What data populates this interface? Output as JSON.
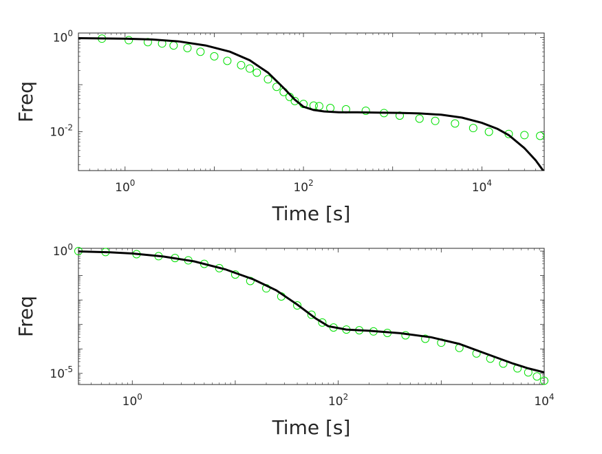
{
  "chart_data": [
    {
      "type": "scatter",
      "xlabel": "Time [s]",
      "ylabel": "Freq",
      "xscale": "log",
      "yscale": "log",
      "xlim": [
        0.3,
        50000
      ],
      "ylim": [
        0.0015,
        1.25
      ],
      "xticks": [
        {
          "v": 1,
          "base": "10",
          "exp": "0"
        },
        {
          "v": 100,
          "base": "10",
          "exp": "2"
        },
        {
          "v": 10000,
          "base": "10",
          "exp": "4"
        }
      ],
      "yticks": [
        {
          "v": 0.01,
          "base": "10",
          "exp": "-2"
        },
        {
          "v": 1,
          "base": "10",
          "exp": "0"
        }
      ],
      "marker_color": "#00e000",
      "line_color": "#000000",
      "series": [
        {
          "kind": "markers",
          "x": [
            0.55,
            1.1,
            1.8,
            2.6,
            3.5,
            5,
            7,
            10,
            14,
            20,
            25,
            30,
            40,
            50,
            60,
            70,
            80,
            100,
            130,
            150,
            200,
            300,
            500,
            800,
            1200,
            2000,
            3000,
            5000,
            8000,
            12000,
            20000,
            30000,
            45000
          ],
          "y": [
            0.95,
            0.88,
            0.8,
            0.75,
            0.68,
            0.6,
            0.5,
            0.4,
            0.32,
            0.26,
            0.22,
            0.18,
            0.13,
            0.09,
            0.07,
            0.055,
            0.045,
            0.039,
            0.036,
            0.035,
            0.032,
            0.03,
            0.028,
            0.025,
            0.022,
            0.019,
            0.017,
            0.015,
            0.012,
            0.01,
            0.009,
            0.0085,
            0.0082
          ]
        },
        {
          "kind": "fit",
          "x": [
            0.3,
            1,
            2,
            4,
            8,
            15,
            25,
            40,
            60,
            80,
            100,
            130,
            170,
            250,
            400,
            700,
            1200,
            2000,
            3500,
            6000,
            10000,
            15000,
            20000,
            30000,
            40000,
            50000
          ],
          "y": [
            0.97,
            0.95,
            0.91,
            0.83,
            0.68,
            0.5,
            0.33,
            0.18,
            0.085,
            0.048,
            0.034,
            0.029,
            0.027,
            0.026,
            0.026,
            0.0255,
            0.0252,
            0.0245,
            0.023,
            0.02,
            0.0155,
            0.0115,
            0.0085,
            0.0045,
            0.0025,
            0.0014
          ]
        }
      ]
    },
    {
      "type": "scatter",
      "xlabel": "Time [s]",
      "ylabel": "Freq",
      "xscale": "log",
      "yscale": "log",
      "xlim": [
        0.3,
        10000
      ],
      "ylim": [
        3.5e-06,
        1.3
      ],
      "xticks": [
        {
          "v": 1,
          "base": "10",
          "exp": "0"
        },
        {
          "v": 100,
          "base": "10",
          "exp": "2"
        },
        {
          "v": 10000,
          "base": "10",
          "exp": "4"
        }
      ],
      "yticks": [
        {
          "v": 1e-05,
          "base": "10",
          "exp": "-5"
        },
        {
          "v": 1,
          "base": "10",
          "exp": "0"
        }
      ],
      "marker_color": "#00e000",
      "line_color": "#000000",
      "series": [
        {
          "kind": "markers",
          "x": [
            0.3,
            0.55,
            1.1,
            1.8,
            2.6,
            3.5,
            5,
            7,
            10,
            14,
            20,
            28,
            40,
            55,
            70,
            90,
            120,
            160,
            220,
            300,
            450,
            700,
            1000,
            1500,
            2200,
            3000,
            4000,
            5500,
            7000,
            8500,
            10000
          ],
          "y": [
            1.0,
            0.92,
            0.75,
            0.62,
            0.52,
            0.42,
            0.3,
            0.2,
            0.11,
            0.06,
            0.03,
            0.014,
            0.006,
            0.0025,
            0.0012,
            0.00075,
            0.00062,
            0.00058,
            0.00052,
            0.00045,
            0.00036,
            0.00026,
            0.00018,
            0.00011,
            6.5e-05,
            4e-05,
            2.5e-05,
            1.6e-05,
            1.1e-05,
            7.5e-06,
            5e-06
          ]
        },
        {
          "kind": "fit",
          "x": [
            0.3,
            0.6,
            1,
            2,
            4,
            8,
            15,
            25,
            40,
            60,
            80,
            120,
            200,
            400,
            800,
            1500,
            3000,
            5000,
            7000,
            10000
          ],
          "y": [
            0.97,
            0.9,
            0.8,
            0.6,
            0.38,
            0.18,
            0.07,
            0.025,
            0.0065,
            0.0018,
            0.00085,
            0.00062,
            0.00055,
            0.00044,
            0.0003,
            0.00016,
            5.5e-05,
            2.5e-05,
            1.6e-05,
            1.1e-05
          ]
        }
      ]
    }
  ]
}
